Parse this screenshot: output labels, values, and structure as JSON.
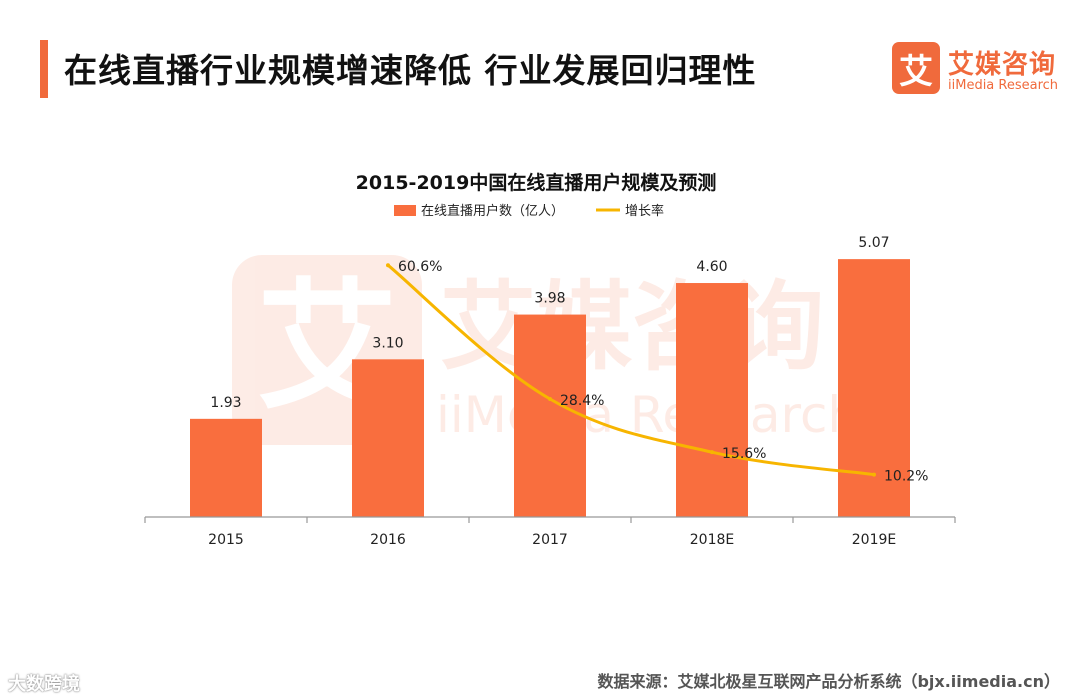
{
  "header": {
    "title": "在线直播行业规模增速降低 行业发展回归理性",
    "brand_logo_char": "艾",
    "brand_name": "艾媒咨询",
    "brand_en": "iiMedia Research",
    "accent_color": "#f06a3c"
  },
  "watermark": {
    "large_text": "艾媒咨询",
    "large_en": "iiMedia Research",
    "corner_text": "大数跨境"
  },
  "footer": {
    "source": "数据来源：艾媒北极星互联网产品分析系统（bjx.iimedia.cn）"
  },
  "chart_data": {
    "type": "bar",
    "title": "2015-2019中国在线直播用户规模及预测",
    "categories": [
      "2015",
      "2016",
      "2017",
      "2018E",
      "2019E"
    ],
    "series": [
      {
        "name": "在线直播用户数（亿人）",
        "type": "bar",
        "color": "#f96e3e",
        "values": [
          1.93,
          3.1,
          3.98,
          4.6,
          5.07
        ],
        "labels": [
          "1.93",
          "3.10",
          "3.98",
          "4.60",
          "5.07"
        ]
      },
      {
        "name": "增长率",
        "type": "line",
        "color": "#f7b500",
        "values": [
          null,
          60.6,
          28.4,
          15.6,
          10.2
        ],
        "labels": [
          "",
          "60.6%",
          "28.4%",
          "15.6%",
          "10.2%"
        ]
      }
    ],
    "ylim": [
      0,
      5.8
    ],
    "y2lim": [
      0,
      71
    ],
    "legend_position": "top-center",
    "xlabel": "",
    "ylabel": ""
  }
}
